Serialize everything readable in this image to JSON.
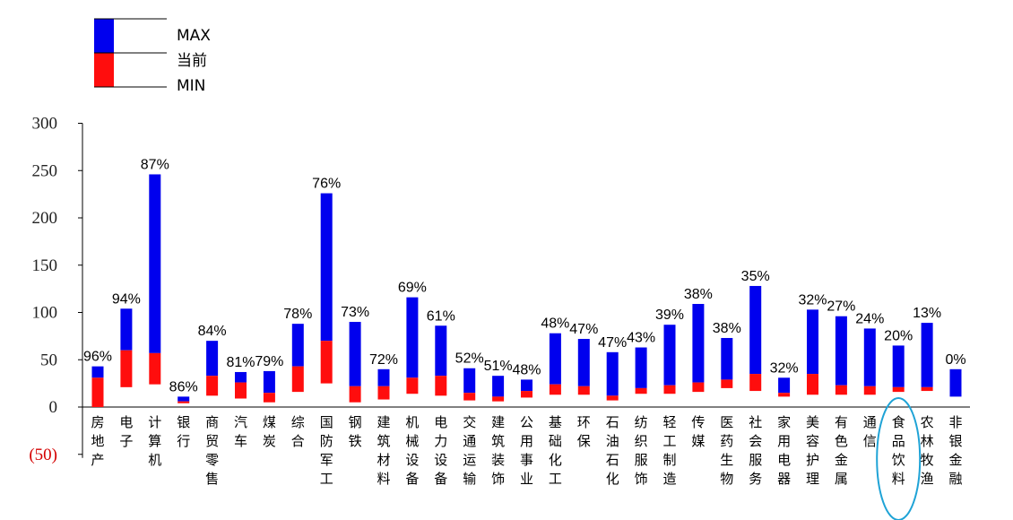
{
  "chart_data": {
    "type": "bar",
    "chart_kind": "floating range bar (MIN to MAX) with current-value split",
    "ylim": [
      -50,
      300
    ],
    "y_ticks": [
      -50,
      0,
      50,
      100,
      150,
      200,
      250,
      300
    ],
    "y_tick_labels": [
      "(50)",
      "0",
      "50",
      "100",
      "150",
      "200",
      "250",
      "300"
    ],
    "legend": [
      {
        "name": "MAX",
        "color": "#0000ee"
      },
      {
        "name": "当前",
        "color": "#ff0d0d"
      },
      {
        "name": "MIN",
        "color": "#000000"
      }
    ],
    "colors": {
      "upper": "#0000ee",
      "lower": "#ff0d0d",
      "highlight": "#1fa3d6"
    },
    "highlight_category": "食品饮料",
    "categories": [
      "房地产",
      "电子",
      "计算机",
      "银行",
      "商贸零售",
      "汽车",
      "煤炭",
      "综合",
      "国防军工",
      "钢铁",
      "建筑材料",
      "机械设备",
      "电力设备",
      "交通运输",
      "建筑装饰",
      "公用事业",
      "基础化工",
      "环保",
      "石油石化",
      "纺织服饰",
      "轻工制造",
      "传媒",
      "医药生物",
      "社会服务",
      "家用电器",
      "美容护理",
      "有色金属",
      "通信",
      "食品饮料",
      "农林牧渔",
      "非银金融"
    ],
    "series": [
      {
        "name": "MAX",
        "values": [
          43,
          104,
          246,
          11,
          70,
          37,
          38,
          88,
          226,
          90,
          40,
          116,
          86,
          41,
          33,
          29,
          78,
          72,
          58,
          63,
          87,
          109,
          73,
          128,
          31,
          103,
          96,
          83,
          65,
          89,
          40
        ]
      },
      {
        "name": "当前",
        "values": [
          31,
          60,
          57,
          6,
          33,
          26,
          15,
          43,
          70,
          22,
          22,
          31,
          33,
          15,
          11,
          17,
          24,
          22,
          12,
          20,
          23,
          26,
          29,
          35,
          15,
          35,
          23,
          22,
          21,
          21,
          11
        ]
      },
      {
        "name": "MIN",
        "values": [
          0,
          21,
          24,
          4,
          12,
          9,
          5,
          16,
          25,
          5,
          8,
          14,
          12,
          7,
          6,
          10,
          13,
          13,
          7,
          14,
          14,
          16,
          20,
          17,
          11,
          13,
          13,
          13,
          16,
          17,
          11
        ]
      }
    ],
    "percent_labels": [
      "96%",
      "94%",
      "87%",
      "86%",
      "84%",
      "81%",
      "79%",
      "78%",
      "76%",
      "73%",
      "72%",
      "69%",
      "61%",
      "52%",
      "51%",
      "48%",
      "48%",
      "47%",
      "47%",
      "43%",
      "39%",
      "38%",
      "38%",
      "35%",
      "32%",
      "32%",
      "27%",
      "24%",
      "20%",
      "13%",
      "0%"
    ]
  }
}
